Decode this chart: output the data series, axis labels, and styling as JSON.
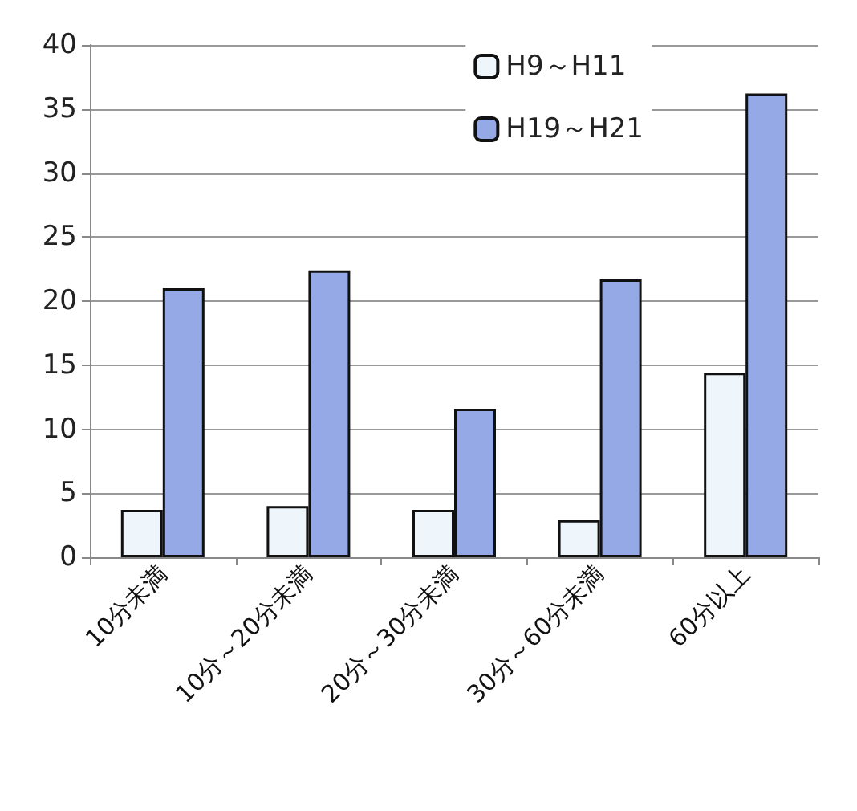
{
  "chart_data": {
    "type": "bar",
    "categories": [
      "10分未満",
      "10分～20分未満",
      "20分～30分未満",
      "30分～60分未満",
      "60分以上"
    ],
    "series": [
      {
        "name": "H9～H11",
        "color": "#eef6fb",
        "values": [
          3.7,
          4.0,
          3.7,
          2.9,
          14.4
        ]
      },
      {
        "name": "H19～H21",
        "color": "#95a9e6",
        "values": [
          21.0,
          22.4,
          11.6,
          21.7,
          36.2
        ]
      }
    ],
    "ylim": [
      0,
      40
    ],
    "yticks": [
      0,
      5,
      10,
      15,
      20,
      25,
      30,
      35,
      40
    ],
    "grid": "y",
    "legend": "top right"
  }
}
